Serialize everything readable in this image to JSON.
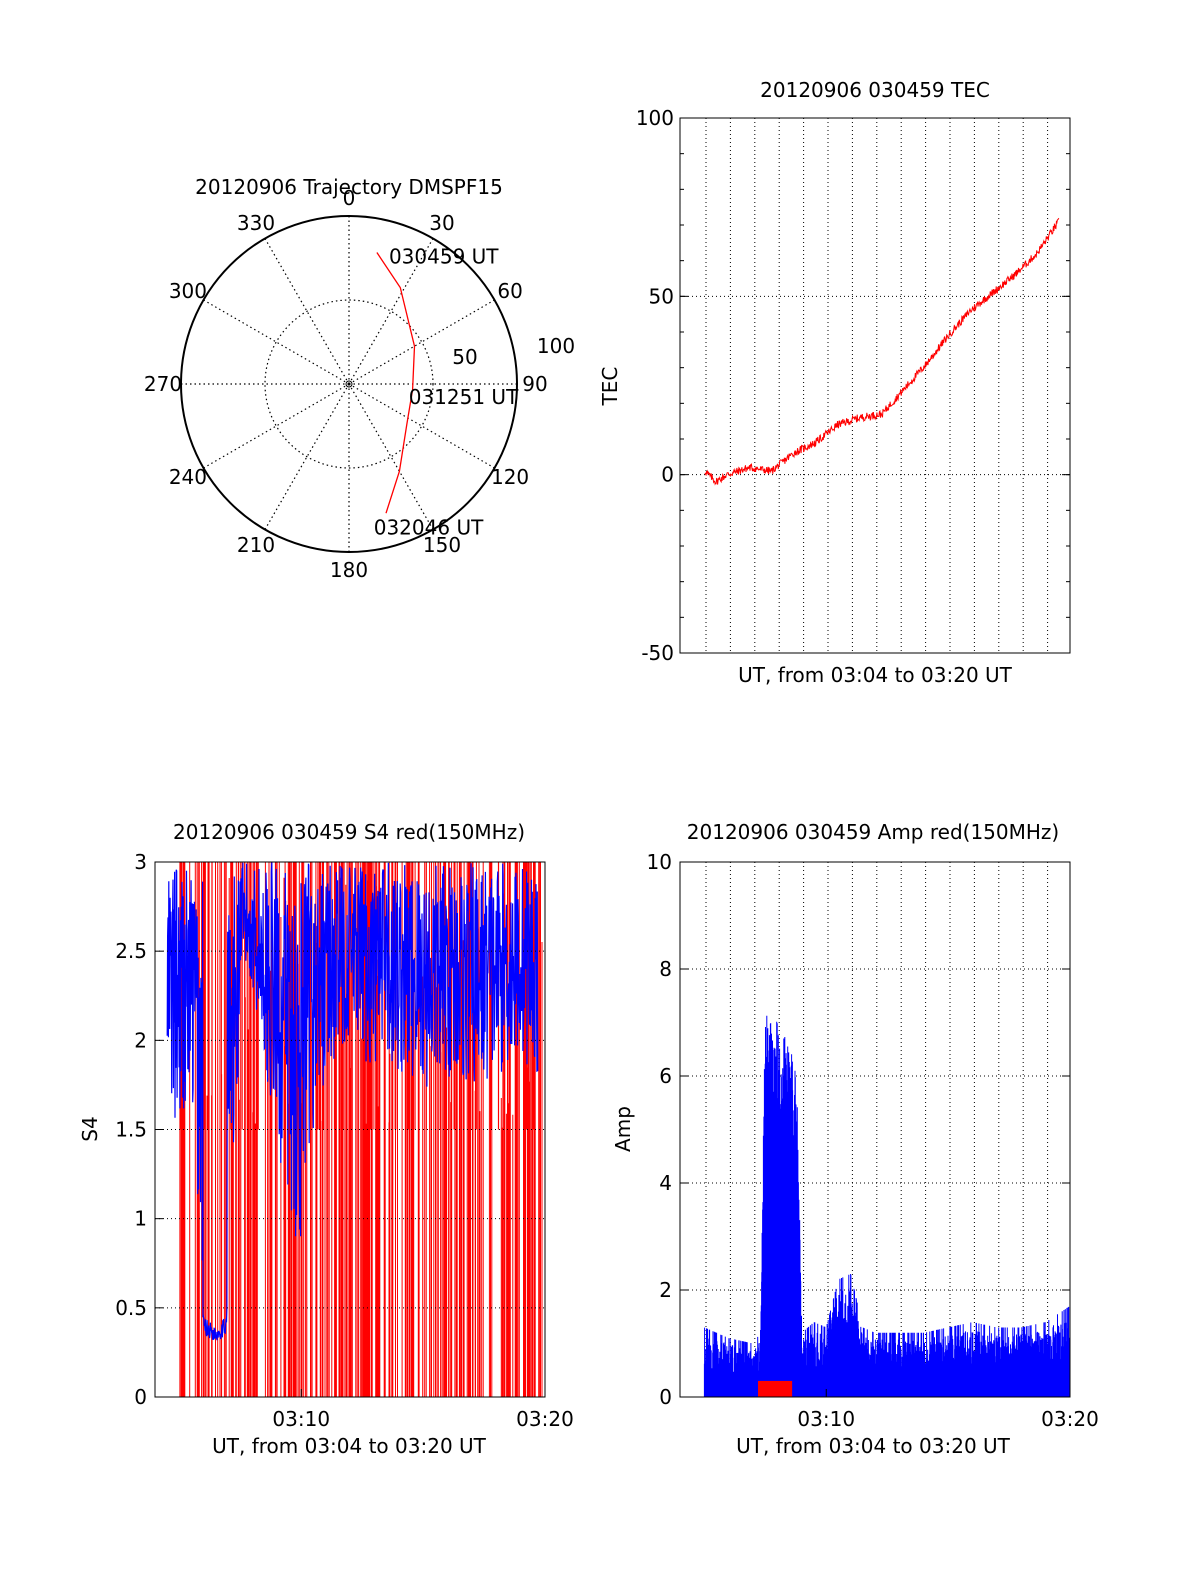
{
  "chart_data": [
    {
      "id": "trajectory",
      "type": "polar",
      "title": "20120906 Trajectory DMSPF15",
      "angle_labels": [
        "0",
        "30",
        "60",
        "90",
        "120",
        "150",
        "180",
        "210",
        "240",
        "270",
        "300",
        "330"
      ],
      "radius_labels": [
        "50",
        "100"
      ],
      "rlim": [
        0,
        100
      ],
      "grid": true,
      "series_color": "#ff0000",
      "track": [
        {
          "az": 12,
          "el": 20
        },
        {
          "az": 28,
          "el": 35
        },
        {
          "az": 60,
          "el": 55
        },
        {
          "az": 95,
          "el": 62
        },
        {
          "az": 125,
          "el": 58
        },
        {
          "az": 150,
          "el": 40
        },
        {
          "az": 164,
          "el": 20
        }
      ],
      "annotations": [
        {
          "text": "030459 UT",
          "az": 20,
          "el": 20
        },
        {
          "text": "031251 UT",
          "az": 102,
          "el": 60
        },
        {
          "text": "032046 UT",
          "az": 168,
          "el": 12
        }
      ]
    },
    {
      "id": "tec",
      "type": "line",
      "title": "20120906 030459 TEC",
      "xlabel": "UT, from 03:04 to 03:20 UT",
      "ylabel": "TEC",
      "ylim": [
        -50,
        100
      ],
      "yticks": [
        "100",
        "50",
        "0",
        "-50"
      ],
      "xlim_min": [
        0,
        16.5
      ],
      "grid": true,
      "series_color": "#ff0000",
      "x_min": [
        0,
        0.5,
        1,
        2,
        3,
        4,
        5,
        6,
        7,
        8,
        9,
        10,
        11,
        12,
        13,
        14,
        15,
        16
      ],
      "values": [
        1,
        -2,
        0,
        2,
        1,
        6,
        9,
        14,
        16,
        17,
        24,
        31,
        39,
        46,
        51,
        56,
        62,
        71
      ]
    },
    {
      "id": "s4",
      "type": "line",
      "title": "20120906 030459 S4 red(150MHz)",
      "xlabel": "UT, from 03:04 to 03:20 UT",
      "ylabel": "S4",
      "ylim": [
        0,
        3
      ],
      "yticks": [
        "3",
        "2.5",
        "2",
        "1.5",
        "1",
        "0.5",
        "0"
      ],
      "xticks": [
        "03:10",
        "03:20"
      ],
      "xlim_min": [
        0,
        16
      ],
      "grid": true,
      "series": [
        {
          "color": "#ff0000"
        },
        {
          "color": "#0000ff"
        }
      ],
      "blue_envelope_min": [
        0.5,
        1.5,
        2.0,
        2.5,
        2.9,
        3.3,
        3.5,
        4.0,
        5.5,
        6.0,
        6.5,
        7.0,
        7.5,
        8.0,
        9.0,
        10.0,
        11.0,
        12.0,
        13.0,
        14.0,
        15.0,
        15.7
      ],
      "blue_envelope_low": [
        1.5,
        1.6,
        0.4,
        0.35,
        0.4,
        1.2,
        2.3,
        2.3,
        1.0,
        0.8,
        1.5,
        1.8,
        1.9,
        2.0,
        1.8,
        1.8,
        1.7,
        1.8,
        1.7,
        1.8,
        1.9,
        1.8
      ]
    },
    {
      "id": "amp",
      "type": "line",
      "title": "20120906 030459 Amp red(150MHz)",
      "xlabel": "UT, from 03:04 to 03:20 UT",
      "ylabel": "Amp",
      "ylim": [
        0,
        10
      ],
      "yticks": [
        "10",
        "8",
        "6",
        "4",
        "2",
        "0"
      ],
      "xticks": [
        "03:10",
        "03:20"
      ],
      "xlim_min": [
        0,
        16
      ],
      "grid": true,
      "series": [
        {
          "color": "#0000ff"
        },
        {
          "color": "#ff0000"
        }
      ],
      "blue_x_min": [
        1.0,
        2.0,
        3.0,
        3.3,
        3.5,
        4.0,
        4.5,
        4.8,
        5.0,
        5.5,
        6.0,
        6.5,
        7.0,
        7.5,
        8.0,
        9.0,
        10.0,
        11.0,
        12.0,
        13.0,
        14.0,
        15.0,
        16.0
      ],
      "blue_values": [
        1.3,
        1.1,
        1.0,
        1.2,
        7.3,
        7.0,
        6.6,
        6.0,
        1.2,
        1.4,
        1.3,
        2.2,
        2.3,
        1.3,
        1.2,
        1.2,
        1.2,
        1.3,
        1.4,
        1.3,
        1.3,
        1.4,
        1.7
      ],
      "red_x_min": [
        3.2,
        4.6
      ],
      "red_values": [
        0.3,
        0.3
      ]
    }
  ]
}
